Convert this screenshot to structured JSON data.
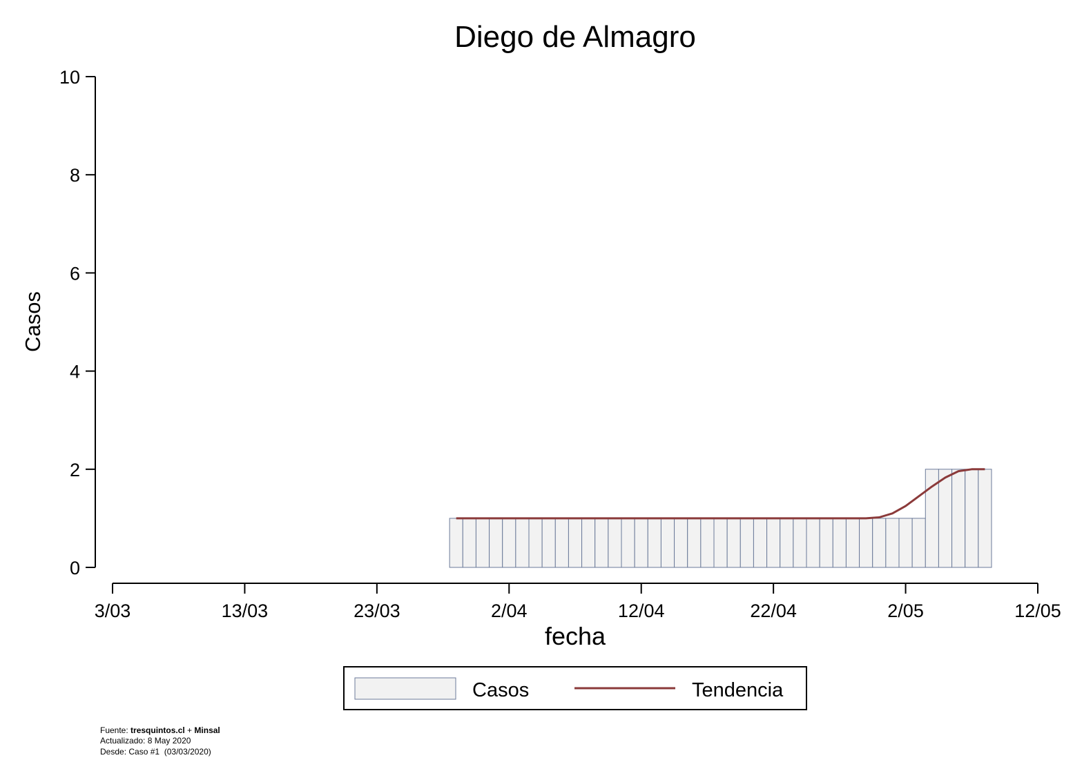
{
  "chart_data": {
    "type": "bar",
    "title": "Diego de Almagro",
    "xlabel": "fecha",
    "ylabel": "Casos",
    "ylim": [
      0,
      10
    ],
    "y_ticks": [
      0,
      2,
      4,
      6,
      8,
      10
    ],
    "x_ticks": [
      {
        "date": "2020-03-03",
        "label": "3/03"
      },
      {
        "date": "2020-03-13",
        "label": "13/03"
      },
      {
        "date": "2020-03-23",
        "label": "23/03"
      },
      {
        "date": "2020-04-02",
        "label": "2/04"
      },
      {
        "date": "2020-04-12",
        "label": "12/04"
      },
      {
        "date": "2020-04-22",
        "label": "22/04"
      },
      {
        "date": "2020-05-02",
        "label": "2/05"
      },
      {
        "date": "2020-05-12",
        "label": "12/05"
      }
    ],
    "xlim": [
      "2020-03-03",
      "2020-05-12"
    ],
    "grid": false,
    "legend_position": "bottom",
    "colors": {
      "bar_fill": "#f2f2f2",
      "bar_stroke": "#6b7a99",
      "trend": "#8b3a3a"
    },
    "series": [
      {
        "name": "Casos",
        "type": "bar",
        "x": [
          "2020-03-29",
          "2020-03-30",
          "2020-03-31",
          "2020-04-01",
          "2020-04-02",
          "2020-04-03",
          "2020-04-04",
          "2020-04-05",
          "2020-04-06",
          "2020-04-07",
          "2020-04-08",
          "2020-04-09",
          "2020-04-10",
          "2020-04-11",
          "2020-04-12",
          "2020-04-13",
          "2020-04-14",
          "2020-04-15",
          "2020-04-16",
          "2020-04-17",
          "2020-04-18",
          "2020-04-19",
          "2020-04-20",
          "2020-04-21",
          "2020-04-22",
          "2020-04-23",
          "2020-04-24",
          "2020-04-25",
          "2020-04-26",
          "2020-04-27",
          "2020-04-28",
          "2020-04-29",
          "2020-04-30",
          "2020-05-01",
          "2020-05-02",
          "2020-05-03",
          "2020-05-04",
          "2020-05-05",
          "2020-05-06",
          "2020-05-07",
          "2020-05-08"
        ],
        "values": [
          1,
          1,
          1,
          1,
          1,
          1,
          1,
          1,
          1,
          1,
          1,
          1,
          1,
          1,
          1,
          1,
          1,
          1,
          1,
          1,
          1,
          1,
          1,
          1,
          1,
          1,
          1,
          1,
          1,
          1,
          1,
          1,
          1,
          1,
          1,
          1,
          2,
          2,
          2,
          2,
          2
        ]
      },
      {
        "name": "Tendencia",
        "type": "line",
        "x": [
          "2020-03-29",
          "2020-04-10",
          "2020-04-20",
          "2020-04-28",
          "2020-04-29",
          "2020-04-30",
          "2020-05-01",
          "2020-05-02",
          "2020-05-03",
          "2020-05-04",
          "2020-05-05",
          "2020-05-06",
          "2020-05-07",
          "2020-05-08"
        ],
        "values": [
          1,
          1,
          1,
          1,
          1,
          1.02,
          1.1,
          1.25,
          1.45,
          1.65,
          1.83,
          1.96,
          2,
          2
        ]
      }
    ]
  },
  "notes": {
    "source_prefix": "Fuente: ",
    "source_site": "tresquintos.cl",
    "source_join": " + ",
    "source_org": "Minsal",
    "updated": "Actualizado: 8 May 2020",
    "since": "Desde: Caso #1  (03/03/2020)"
  }
}
